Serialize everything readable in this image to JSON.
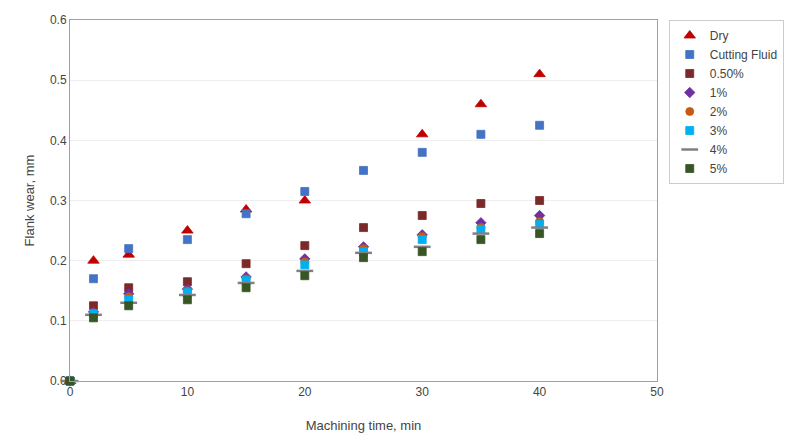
{
  "chart_data": {
    "type": "scatter",
    "x_label": "Machining time, min",
    "y_label": "Flank wear, mm",
    "xlim": [
      0,
      50
    ],
    "ylim": [
      0,
      0.6
    ],
    "xticks": [
      0,
      10,
      20,
      30,
      40,
      50
    ],
    "yticks": [
      {
        "value": 0,
        "label": "0.0"
      },
      0.1,
      0.2,
      0.3,
      0.4,
      0.5,
      0.6
    ],
    "grid": "y",
    "legend": "right",
    "series": [
      {
        "name": "Dry",
        "color": "#c00000",
        "marker": "triangle",
        "x": [
          0,
          2,
          5,
          10,
          15,
          20,
          30,
          35,
          40
        ],
        "values": [
          0,
          0.2,
          0.21,
          0.25,
          0.285,
          0.3,
          0.41,
          0.46,
          0.51
        ]
      },
      {
        "name": "Cutting Fluid",
        "color": "#4472c4",
        "marker": "square",
        "x": [
          0,
          2,
          5,
          10,
          15,
          20,
          25,
          30,
          35,
          40
        ],
        "values": [
          0,
          0.17,
          0.22,
          0.235,
          0.278,
          0.315,
          0.35,
          0.38,
          0.41,
          0.425
        ]
      },
      {
        "name": "0.50%",
        "color": "#7b2929",
        "marker": "square",
        "x": [
          0,
          2,
          5,
          10,
          15,
          20,
          25,
          30,
          35,
          40
        ],
        "values": [
          0,
          0.125,
          0.155,
          0.165,
          0.195,
          0.225,
          0.255,
          0.275,
          0.295,
          0.3
        ]
      },
      {
        "name": "1%",
        "color": "#7030a0",
        "marker": "diamond",
        "x": [
          0,
          2,
          5,
          10,
          15,
          20,
          25,
          30,
          35,
          40
        ],
        "values": [
          0,
          0.115,
          0.145,
          0.153,
          0.173,
          0.203,
          0.223,
          0.243,
          0.263,
          0.275
        ]
      },
      {
        "name": "2%",
        "color": "#c55a11",
        "marker": "circle",
        "x": [
          0,
          2,
          5,
          10,
          15,
          20,
          25,
          30,
          35,
          40
        ],
        "values": [
          0,
          0.113,
          0.14,
          0.15,
          0.17,
          0.198,
          0.22,
          0.24,
          0.255,
          0.265
        ]
      },
      {
        "name": "3%",
        "color": "#00b0f0",
        "marker": "square",
        "x": [
          0,
          2,
          5,
          10,
          15,
          20,
          25,
          30,
          35,
          40
        ],
        "values": [
          0,
          0.112,
          0.135,
          0.147,
          0.167,
          0.193,
          0.215,
          0.235,
          0.252,
          0.26
        ]
      },
      {
        "name": "4%",
        "color": "#808080",
        "marker": "hline",
        "x": [
          0,
          2,
          5,
          10,
          15,
          20,
          25,
          30,
          35,
          40
        ],
        "values": [
          0,
          0.11,
          0.13,
          0.143,
          0.163,
          0.183,
          0.213,
          0.223,
          0.245,
          0.255
        ]
      },
      {
        "name": "5%",
        "color": "#375623",
        "marker": "square",
        "x": [
          0,
          2,
          5,
          10,
          15,
          20,
          25,
          30,
          35,
          40
        ],
        "values": [
          0,
          0.105,
          0.125,
          0.135,
          0.155,
          0.175,
          0.205,
          0.215,
          0.235,
          0.245
        ]
      }
    ]
  }
}
